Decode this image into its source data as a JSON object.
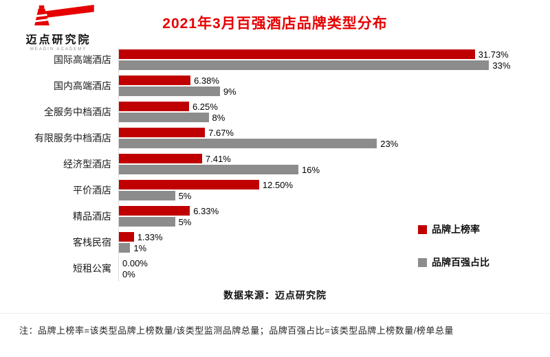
{
  "logo": {
    "name": "迈点研究院",
    "subtitle": "MEADIN ACADEMY"
  },
  "header": {
    "title": "2021年3月百强酒店品牌类型分布"
  },
  "chart_data": {
    "type": "bar",
    "orientation": "horizontal",
    "title": "2021年3月百强酒店品牌类型分布",
    "xlabel": "",
    "ylabel": "",
    "xlim": [
      0,
      35
    ],
    "xmax": 35,
    "grid": false,
    "legend_position": "right",
    "categories": [
      "国际高端酒店",
      "国内高端酒店",
      "全服务中档酒店",
      "有限服务中档酒店",
      "经济型酒店",
      "平价酒店",
      "精品酒店",
      "客栈民宿",
      "短租公寓"
    ],
    "series": [
      {
        "name": "品牌上榜率",
        "color": "#c00000",
        "values": [
          31.73,
          6.38,
          6.25,
          7.67,
          7.41,
          12.5,
          6.33,
          1.33,
          0.0
        ],
        "labels": [
          "31.73%",
          "6.38%",
          "6.25%",
          "7.67%",
          "7.41%",
          "12.50%",
          "6.33%",
          "1.33%",
          "0.00%"
        ]
      },
      {
        "name": "品牌百强占比",
        "color": "#8c8c8c",
        "values": [
          33,
          9,
          8,
          23,
          16,
          5,
          5,
          1,
          0
        ],
        "labels": [
          "33%",
          "9%",
          "8%",
          "23%",
          "16%",
          "5%",
          "5%",
          "1%",
          "0%"
        ]
      }
    ]
  },
  "source": "数据来源：迈点研究院",
  "footnote": "注：品牌上榜率=该类型品牌上榜数量/该类型监测品牌总量；品牌百强占比=该类型品牌上榜数量/榜单总量"
}
